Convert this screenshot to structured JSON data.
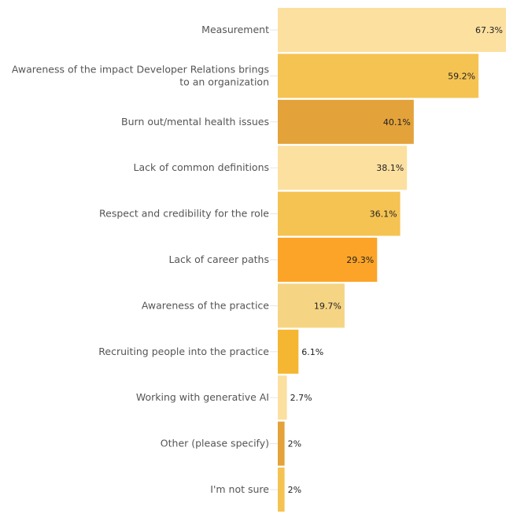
{
  "chart_data": {
    "type": "bar",
    "orientation": "horizontal",
    "title": "",
    "xlabel": "",
    "ylabel": "",
    "xlim": [
      0,
      67.3
    ],
    "grid": false,
    "unit": "%",
    "categories": [
      [
        "Measurement"
      ],
      [
        "Awareness of the impact Developer Relations brings",
        "to an organization"
      ],
      [
        "Burn out/mental health issues"
      ],
      [
        "Lack of common definitions"
      ],
      [
        "Respect and credibility for the role"
      ],
      [
        "Lack of career paths"
      ],
      [
        "Awareness of the practice"
      ],
      [
        "Recruiting people into the practice"
      ],
      [
        "Working with generative AI"
      ],
      [
        "Other (please specify)"
      ],
      [
        "I'm not sure"
      ]
    ],
    "values": [
      67.3,
      59.2,
      40.1,
      38.1,
      36.1,
      29.3,
      19.7,
      6.1,
      2.7,
      2,
      2
    ],
    "data_labels": [
      "67.3%",
      "59.2%",
      "40.1%",
      "38.1%",
      "36.1%",
      "29.3%",
      "19.7%",
      "6.1%",
      "2.7%",
      "2%",
      "2%"
    ],
    "colors": [
      "#fce0a0",
      "#f5c352",
      "#e3a23a",
      "#fce0a0",
      "#f5c352",
      "#fca427",
      "#f5d584",
      "#f5b731",
      "#fce0a0",
      "#e3a23a",
      "#f5c352"
    ]
  }
}
